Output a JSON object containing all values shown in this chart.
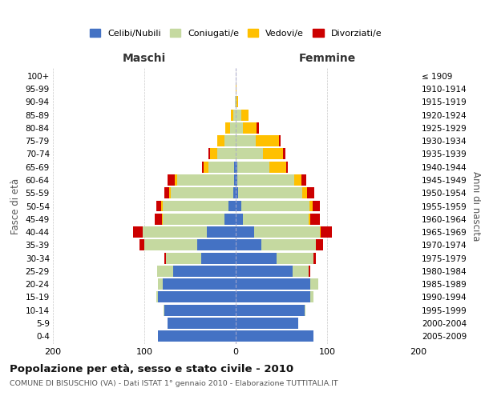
{
  "age_groups": [
    "0-4",
    "5-9",
    "10-14",
    "15-19",
    "20-24",
    "25-29",
    "30-34",
    "35-39",
    "40-44",
    "45-49",
    "50-54",
    "55-59",
    "60-64",
    "65-69",
    "70-74",
    "75-79",
    "80-84",
    "85-89",
    "90-94",
    "95-99",
    "100+"
  ],
  "birth_years": [
    "2005-2009",
    "2000-2004",
    "1995-1999",
    "1990-1994",
    "1985-1989",
    "1980-1984",
    "1975-1979",
    "1970-1974",
    "1965-1969",
    "1960-1964",
    "1955-1959",
    "1950-1954",
    "1945-1949",
    "1940-1944",
    "1935-1939",
    "1930-1934",
    "1925-1929",
    "1920-1924",
    "1915-1919",
    "1910-1914",
    "≤ 1909"
  ],
  "males": {
    "celibi": [
      85,
      75,
      78,
      85,
      80,
      68,
      38,
      42,
      32,
      12,
      8,
      3,
      2,
      2,
      0,
      0,
      0,
      0,
      0,
      0,
      0
    ],
    "coniugati": [
      0,
      0,
      1,
      2,
      5,
      18,
      38,
      58,
      70,
      68,
      72,
      68,
      62,
      28,
      20,
      12,
      6,
      3,
      1,
      0,
      0
    ],
    "vedovi": [
      0,
      0,
      0,
      0,
      0,
      0,
      0,
      0,
      0,
      1,
      2,
      2,
      3,
      5,
      8,
      8,
      5,
      2,
      0,
      0,
      0
    ],
    "divorziati": [
      0,
      0,
      0,
      0,
      0,
      0,
      2,
      5,
      10,
      8,
      5,
      5,
      8,
      2,
      2,
      0,
      0,
      0,
      0,
      0,
      0
    ]
  },
  "females": {
    "nubili": [
      85,
      68,
      75,
      82,
      82,
      62,
      45,
      28,
      20,
      8,
      6,
      3,
      2,
      2,
      0,
      0,
      0,
      0,
      0,
      0,
      0
    ],
    "coniugate": [
      0,
      0,
      1,
      3,
      8,
      18,
      40,
      60,
      72,
      72,
      75,
      70,
      62,
      35,
      30,
      22,
      8,
      6,
      1,
      0,
      0
    ],
    "vedove": [
      0,
      0,
      0,
      0,
      0,
      0,
      0,
      0,
      1,
      2,
      3,
      5,
      8,
      18,
      22,
      25,
      15,
      8,
      2,
      1,
      0
    ],
    "divorziate": [
      0,
      0,
      0,
      0,
      0,
      2,
      3,
      8,
      12,
      10,
      8,
      8,
      5,
      2,
      2,
      2,
      2,
      0,
      0,
      0,
      0
    ]
  },
  "colors": {
    "celibi": "#4472c4",
    "coniugati": "#c5d9a0",
    "vedovi": "#ffc000",
    "divorziati": "#cc0000"
  },
  "title": "Popolazione per età, sesso e stato civile - 2010",
  "subtitle": "COMUNE DI BISUSCHIO (VA) - Dati ISTAT 1° gennaio 2010 - Elaborazione TUTTITALIA.IT",
  "xlabel_left": "Maschi",
  "xlabel_right": "Femmine",
  "ylabel_left": "Fasce di età",
  "ylabel_right": "Anni di nascita",
  "xlim": 200,
  "legend_labels": [
    "Celibi/Nubili",
    "Coniugati/e",
    "Vedovi/e",
    "Divorziati/e"
  ],
  "bg_color": "#ffffff",
  "plot_bg": "#ffffff",
  "grid_color": "#bbbbbb"
}
